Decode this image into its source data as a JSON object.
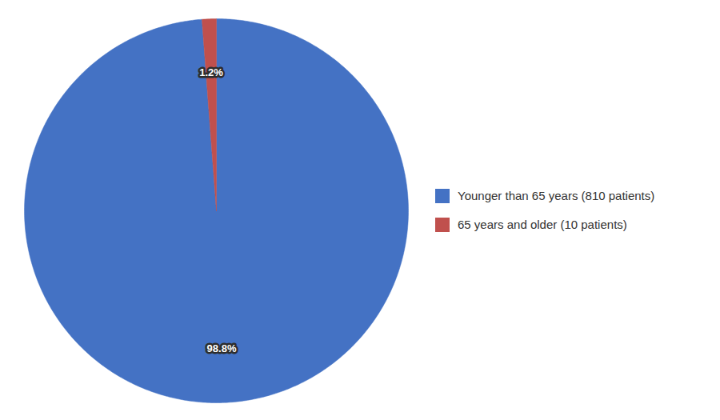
{
  "chart_data": {
    "type": "pie",
    "categories": [
      "Younger than 65 years (810 patients)",
      "65 years and older (10 patients)"
    ],
    "values": [
      98.8,
      1.2
    ],
    "value_labels": [
      "98.8%",
      "1.2%"
    ],
    "colors": [
      "#4472C4",
      "#C0504D"
    ],
    "data_labels": true,
    "legend": "right"
  }
}
